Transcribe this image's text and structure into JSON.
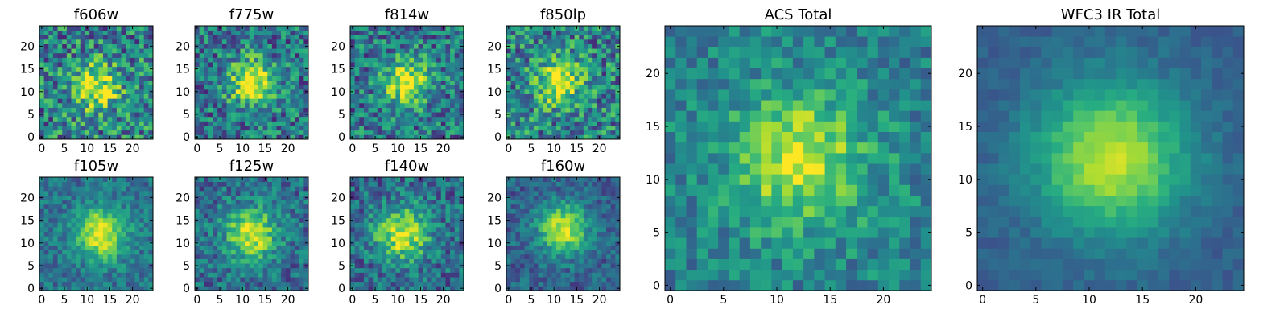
{
  "colormap": "viridis",
  "colors": {
    "low": "#440154",
    "mid": "#21918c",
    "high": "#fde725"
  },
  "chart_data": [
    {
      "type": "heatmap",
      "title": "f606w",
      "size": [
        25,
        25
      ],
      "xlim": [
        0,
        24
      ],
      "ylim": [
        0,
        24
      ],
      "xticks": [
        "0",
        "5",
        "10",
        "15",
        "20"
      ],
      "yticks": [
        "0",
        "5",
        "10",
        "15",
        "20"
      ],
      "center": [
        12,
        11
      ],
      "peak": 0.55,
      "width": 3.5,
      "noise": 0.32,
      "base": 0.45
    },
    {
      "type": "heatmap",
      "title": "f775w",
      "size": [
        25,
        25
      ],
      "xlim": [
        0,
        24
      ],
      "ylim": [
        0,
        24
      ],
      "xticks": [
        "0",
        "5",
        "10",
        "15",
        "20"
      ],
      "yticks": [
        "0",
        "5",
        "10",
        "15",
        "20"
      ],
      "center": [
        12,
        12
      ],
      "peak": 0.6,
      "width": 3.5,
      "noise": 0.28,
      "base": 0.4
    },
    {
      "type": "heatmap",
      "title": "f814w",
      "size": [
        25,
        25
      ],
      "xlim": [
        0,
        24
      ],
      "ylim": [
        0,
        24
      ],
      "xticks": [
        "0",
        "5",
        "10",
        "15",
        "20"
      ],
      "yticks": [
        "0",
        "5",
        "10",
        "15",
        "20"
      ],
      "center": [
        12,
        12
      ],
      "peak": 0.6,
      "width": 3.5,
      "noise": 0.28,
      "base": 0.4
    },
    {
      "type": "heatmap",
      "title": "f850lp",
      "size": [
        25,
        25
      ],
      "xlim": [
        0,
        24
      ],
      "ylim": [
        0,
        24
      ],
      "xticks": [
        "0",
        "5",
        "10",
        "15",
        "20"
      ],
      "yticks": [
        "0",
        "5",
        "10",
        "15",
        "20"
      ],
      "center": [
        11,
        12
      ],
      "peak": 0.55,
      "width": 3.5,
      "noise": 0.3,
      "base": 0.45
    },
    {
      "type": "heatmap",
      "title": "f105w",
      "size": [
        25,
        25
      ],
      "xlim": [
        0,
        24
      ],
      "ylim": [
        0,
        24
      ],
      "xticks": [
        "0",
        "5",
        "10",
        "15",
        "20"
      ],
      "yticks": [
        "0",
        "5",
        "10",
        "15",
        "20"
      ],
      "center": [
        13,
        12
      ],
      "peak": 0.6,
      "width": 4.0,
      "noise": 0.16,
      "base": 0.38
    },
    {
      "type": "heatmap",
      "title": "f125w",
      "size": [
        25,
        25
      ],
      "xlim": [
        0,
        24
      ],
      "ylim": [
        0,
        24
      ],
      "xticks": [
        "0",
        "5",
        "10",
        "15",
        "20"
      ],
      "yticks": [
        "0",
        "5",
        "10",
        "15",
        "20"
      ],
      "center": [
        12,
        12
      ],
      "peak": 0.6,
      "width": 4.0,
      "noise": 0.2,
      "base": 0.36
    },
    {
      "type": "heatmap",
      "title": "f140w",
      "size": [
        25,
        25
      ],
      "xlim": [
        0,
        24
      ],
      "ylim": [
        0,
        24
      ],
      "xticks": [
        "0",
        "5",
        "10",
        "15",
        "20"
      ],
      "yticks": [
        "0",
        "5",
        "10",
        "15",
        "20"
      ],
      "center": [
        11,
        12
      ],
      "peak": 0.6,
      "width": 4.0,
      "noise": 0.22,
      "base": 0.36
    },
    {
      "type": "heatmap",
      "title": "f160w",
      "size": [
        25,
        25
      ],
      "xlim": [
        0,
        24
      ],
      "ylim": [
        0,
        24
      ],
      "xticks": [
        "0",
        "5",
        "10",
        "15",
        "20"
      ],
      "yticks": [
        "0",
        "5",
        "10",
        "15",
        "20"
      ],
      "center": [
        12,
        13
      ],
      "peak": 0.62,
      "width": 3.8,
      "noise": 0.15,
      "base": 0.32
    },
    {
      "type": "heatmap",
      "title": "ACS Total",
      "size": [
        25,
        25
      ],
      "xlim": [
        0,
        24
      ],
      "ylim": [
        0,
        24
      ],
      "xticks": [
        "0",
        "5",
        "10",
        "15",
        "20"
      ],
      "yticks": [
        "0",
        "5",
        "10",
        "15",
        "20"
      ],
      "center": [
        12,
        12
      ],
      "peak": 0.5,
      "width": 4.2,
      "noise": 0.18,
      "base": 0.45
    },
    {
      "type": "heatmap",
      "title": "WFC3 IR Total",
      "size": [
        25,
        25
      ],
      "xlim": [
        0,
        24
      ],
      "ylim": [
        0,
        24
      ],
      "xticks": [
        "0",
        "5",
        "10",
        "15",
        "20"
      ],
      "yticks": [
        "0",
        "5",
        "10",
        "15",
        "20"
      ],
      "center": [
        12,
        12
      ],
      "peak": 0.62,
      "width": 5.0,
      "noise": 0.06,
      "base": 0.3
    }
  ]
}
